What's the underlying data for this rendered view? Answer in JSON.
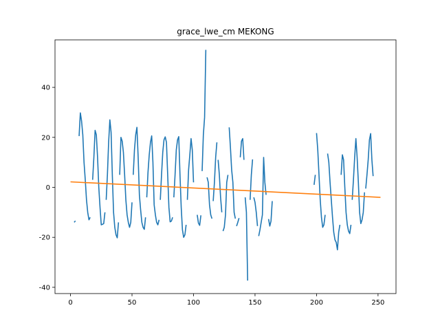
{
  "chart_data": {
    "type": "line",
    "title": "grace_lwe_cm MEKONG",
    "xlabel": "",
    "ylabel": "",
    "xlim": [
      -12.6,
      264.6
    ],
    "ylim": [
      -42.5,
      59.0
    ],
    "xticks": [
      0,
      50,
      100,
      150,
      200,
      250
    ],
    "yticks": [
      -40,
      -20,
      0,
      20,
      40
    ],
    "grid": false,
    "legend": "none",
    "colors": {
      "observed": "#1f77b4",
      "trend": "#ff7f0e"
    },
    "series": [
      {
        "role": "observed",
        "segments": [
          [
            [
              3,
              -14
            ],
            [
              4,
              -13.4
            ]
          ],
          [
            [
              7,
              20.5
            ],
            [
              8,
              29.8
            ],
            [
              9,
              26.5
            ],
            [
              10,
              21
            ],
            [
              11,
              10
            ],
            [
              12,
              3
            ],
            [
              13,
              -5
            ],
            [
              14,
              -10
            ],
            [
              15,
              -13
            ],
            [
              16,
              -12
            ]
          ],
          [
            [
              18,
              3
            ],
            [
              19,
              12
            ],
            [
              20,
              22.8
            ],
            [
              21,
              21
            ],
            [
              22,
              12
            ],
            [
              23,
              0
            ],
            [
              24,
              -8
            ],
            [
              25,
              -15
            ],
            [
              26,
              -14.8
            ],
            [
              27,
              -14.5
            ],
            [
              28,
              -10
            ]
          ],
          [
            [
              29,
              -5
            ],
            [
              30,
              5
            ],
            [
              31,
              18
            ],
            [
              32,
              27
            ],
            [
              33,
              22
            ],
            [
              34,
              5
            ],
            [
              35,
              -10
            ],
            [
              36,
              -16
            ],
            [
              37,
              -19
            ],
            [
              38,
              -20.2
            ],
            [
              39,
              -14
            ]
          ],
          [
            [
              40,
              5
            ],
            [
              41,
              20
            ],
            [
              42,
              18.5
            ],
            [
              43,
              14
            ],
            [
              44,
              5
            ],
            [
              45,
              -5
            ],
            [
              46,
              -11
            ],
            [
              47,
              -14
            ],
            [
              48,
              -16
            ],
            [
              49,
              -14
            ],
            [
              50,
              -6
            ]
          ],
          [
            [
              51,
              5
            ],
            [
              52,
              15
            ],
            [
              53,
              21
            ],
            [
              54,
              24
            ],
            [
              55,
              12
            ],
            [
              56,
              -3
            ],
            [
              57,
              -9
            ],
            [
              58,
              -14
            ],
            [
              59,
              -16
            ],
            [
              60,
              -16.8
            ],
            [
              61,
              -12
            ]
          ],
          [
            [
              62,
              -4
            ],
            [
              63,
              6
            ],
            [
              64,
              13
            ],
            [
              65,
              18
            ],
            [
              66,
              20.6
            ],
            [
              67,
              10
            ],
            [
              68,
              -7
            ],
            [
              69,
              -11
            ],
            [
              70,
              -14
            ],
            [
              71,
              -15
            ],
            [
              72,
              -13
            ]
          ],
          [
            [
              73,
              -5
            ],
            [
              74,
              5
            ],
            [
              75,
              14
            ],
            [
              76,
              19
            ],
            [
              77,
              20.2
            ],
            [
              78,
              18
            ],
            [
              79,
              5
            ],
            [
              80,
              -8
            ],
            [
              81,
              -13.8
            ],
            [
              82,
              -13.5
            ],
            [
              83,
              -12
            ]
          ],
          [
            [
              84,
              -4
            ],
            [
              85,
              5
            ],
            [
              86,
              15
            ],
            [
              87,
              19
            ],
            [
              88,
              20.3
            ],
            [
              89,
              5
            ],
            [
              90,
              -8
            ],
            [
              91,
              -17
            ],
            [
              92,
              -20
            ],
            [
              93,
              -19
            ],
            [
              94,
              -15
            ]
          ],
          [
            [
              95,
              -5
            ],
            [
              96,
              7
            ],
            [
              97,
              13
            ],
            [
              98,
              19.5
            ],
            [
              99,
              15
            ],
            [
              100,
              2
            ]
          ],
          [
            [
              103,
              -11
            ],
            [
              104,
              -14.3
            ],
            [
              105,
              -15.2
            ],
            [
              106,
              -11.2
            ]
          ],
          [
            [
              107,
              6.5
            ],
            [
              108,
              21
            ],
            [
              109,
              28
            ],
            [
              110,
              55
            ]
          ],
          [
            [
              111,
              4
            ],
            [
              112,
              2
            ],
            [
              113,
              -7
            ],
            [
              114,
              -11
            ],
            [
              115,
              -12.5
            ]
          ],
          [
            [
              116,
              -5.5
            ],
            [
              117,
              2
            ],
            [
              118,
              12
            ],
            [
              119,
              18
            ]
          ],
          [
            [
              120,
              11
            ],
            [
              121,
              5
            ],
            [
              122,
              -4
            ],
            [
              123,
              -10
            ]
          ],
          [
            [
              124,
              -17.5
            ],
            [
              125,
              -16
            ],
            [
              126,
              -11
            ],
            [
              127,
              2
            ],
            [
              128,
              5
            ]
          ],
          [
            [
              129,
              24
            ],
            [
              130,
              16
            ],
            [
              131,
              7
            ],
            [
              132,
              2
            ],
            [
              133,
              -10
            ],
            [
              134,
              -12.5
            ]
          ],
          [
            [
              135,
              -15.5
            ],
            [
              136,
              -14
            ],
            [
              137,
              -12.3
            ]
          ],
          [
            [
              138,
              12
            ],
            [
              139,
              18.5
            ],
            [
              140,
              19.5
            ],
            [
              141,
              11
            ]
          ],
          [
            [
              142,
              -4
            ],
            [
              143,
              -10
            ],
            [
              144,
              -37.3
            ]
          ],
          [
            [
              146,
              -5
            ],
            [
              147,
              5
            ],
            [
              148,
              11.2
            ]
          ],
          [
            [
              149,
              -4
            ],
            [
              150,
              -6
            ],
            [
              151,
              -10
            ],
            [
              152,
              -15.5
            ]
          ],
          [
            [
              153,
              -19.5
            ],
            [
              154,
              -17
            ],
            [
              155,
              -14
            ],
            [
              156,
              -11
            ],
            [
              157,
              12
            ],
            [
              158,
              2
            ],
            [
              159,
              -3
            ]
          ],
          [
            [
              161,
              -12.7
            ],
            [
              162,
              -15.5
            ],
            [
              163,
              -13.5
            ],
            [
              164,
              -5.5
            ]
          ],
          [
            [
              198,
              1
            ],
            [
              199,
              5
            ]
          ],
          [
            [
              200,
              21.7
            ],
            [
              201,
              15
            ],
            [
              202,
              5
            ],
            [
              203,
              -5
            ],
            [
              204,
              -12
            ],
            [
              205,
              -16
            ],
            [
              206,
              -15
            ],
            [
              207,
              -11
            ]
          ],
          [
            [
              209,
              13.5
            ],
            [
              210,
              10
            ],
            [
              211,
              2
            ],
            [
              212,
              -5
            ],
            [
              213,
              -12
            ],
            [
              214,
              -18
            ],
            [
              215,
              -21
            ],
            [
              216,
              -22
            ],
            [
              217,
              -25
            ],
            [
              218,
              -18
            ],
            [
              219,
              -15
            ]
          ],
          [
            [
              220,
              5
            ],
            [
              221,
              13
            ],
            [
              222,
              11
            ],
            [
              223,
              0
            ],
            [
              224,
              -10
            ],
            [
              225,
              -15
            ],
            [
              226,
              -17.5
            ],
            [
              227,
              -18.5
            ],
            [
              228,
              -15
            ]
          ],
          [
            [
              229,
              -5
            ],
            [
              230,
              3
            ],
            [
              231,
              12
            ],
            [
              232,
              19.5
            ],
            [
              233,
              12
            ],
            [
              234,
              2
            ],
            [
              235,
              -10
            ],
            [
              236,
              -14.5
            ],
            [
              237,
              -13
            ],
            [
              238,
              -10
            ],
            [
              239,
              -2
            ]
          ],
          [
            [
              240,
              -0.5
            ],
            [
              241,
              5
            ],
            [
              242,
              11
            ],
            [
              243,
              19
            ],
            [
              244,
              21.5
            ],
            [
              245,
              11
            ],
            [
              246,
              4.5
            ]
          ]
        ]
      },
      {
        "role": "trend",
        "points": [
          [
            0,
            2.2
          ],
          [
            252,
            -4.0
          ]
        ]
      }
    ]
  }
}
